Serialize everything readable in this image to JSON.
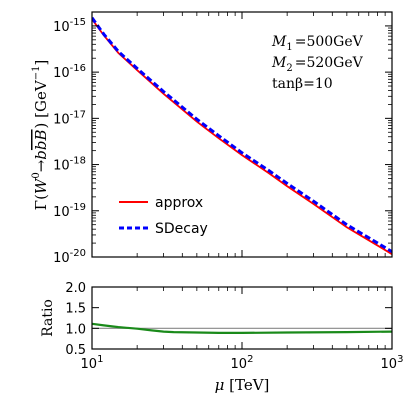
{
  "chart_data": [
    {
      "type": "line",
      "xlabel": "μ [TeV]",
      "ylabel_prefix": "Γ(",
      "ylabel_w": "W",
      "ylabel_w_sup": "0",
      "ylabel_arrow": "→",
      "ylabel_b1": "b",
      "ylabel_b2": "b",
      "ylabel_b3": "B",
      "ylabel_suffix": ") [GeV",
      "ylabel_unit_exp": "−1",
      "ylabel_close": "]",
      "xscale": "log",
      "yscale": "log",
      "xlim": [
        10,
        1000
      ],
      "ylim": [
        1e-20,
        2e-15
      ],
      "yticks": [
        {
          "base": "10",
          "exp": "-15",
          "value": 1e-15
        },
        {
          "base": "10",
          "exp": "-16",
          "value": 1e-16
        },
        {
          "base": "10",
          "exp": "-17",
          "value": 1e-17
        },
        {
          "base": "10",
          "exp": "-18",
          "value": 1e-18
        },
        {
          "base": "10",
          "exp": "-19",
          "value": 1e-19
        },
        {
          "base": "10",
          "exp": "-20",
          "value": 1e-20
        }
      ],
      "annotations": [
        {
          "sym": "M",
          "sub": "1",
          "text": "=500GeV"
        },
        {
          "sym": "M",
          "sub": "2",
          "text": "=520GeV"
        },
        {
          "sym": "tanβ",
          "sub": "",
          "text": "=10"
        }
      ],
      "legend_position": "lower-left",
      "series": [
        {
          "name": "approx",
          "color": "#ff0000",
          "style": "solid",
          "x": [
            10,
            12,
            15,
            20,
            30,
            50,
            70,
            100,
            150,
            200,
            300,
            500,
            700,
            1000
          ],
          "y": [
            1.4e-15,
            6.2e-16,
            2.6e-16,
            1.1e-16,
            3.4e-17,
            8.5e-18,
            3.7e-18,
            1.6e-18,
            6.6e-19,
            3.4e-19,
            1.4e-19,
            4.4e-20,
            2.3e-20,
            1.15e-20
          ]
        },
        {
          "name": "SDecay",
          "color": "#0000ff",
          "style": "dashed",
          "x": [
            10,
            12,
            15,
            20,
            30,
            50,
            70,
            100,
            150,
            200,
            300,
            500,
            700,
            1000
          ],
          "y": [
            1.5e-15,
            6.6e-16,
            2.8e-16,
            1.2e-16,
            3.8e-17,
            9.6e-18,
            4.2e-18,
            1.8e-18,
            7.5e-19,
            3.9e-19,
            1.6e-19,
            5e-20,
            2.6e-20,
            1.3e-20
          ]
        }
      ]
    },
    {
      "type": "line",
      "ylabel": "Ratio",
      "xscale": "log",
      "xlim": [
        10,
        1000
      ],
      "ylim": [
        0.5,
        2.0
      ],
      "yticks": [
        "0.5",
        "1.0",
        "1.5",
        "2.0"
      ],
      "xticks": [
        {
          "base": "10",
          "exp": "1",
          "value": 10
        },
        {
          "base": "10",
          "exp": "2",
          "value": 100
        },
        {
          "base": "10",
          "exp": "3",
          "value": 1000
        }
      ],
      "reference_line": {
        "y": 1.0,
        "color": "#888888"
      },
      "series": [
        {
          "color": "#1a8a1a",
          "x": [
            10,
            12,
            15,
            20,
            25,
            30,
            35,
            50,
            70,
            100,
            200,
            500,
            1000
          ],
          "y": [
            1.11,
            1.07,
            1.03,
            0.99,
            0.95,
            0.92,
            0.91,
            0.9,
            0.89,
            0.89,
            0.9,
            0.91,
            0.92
          ]
        }
      ]
    }
  ]
}
